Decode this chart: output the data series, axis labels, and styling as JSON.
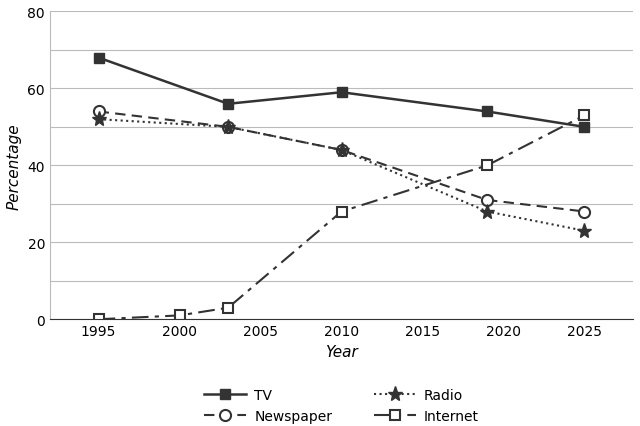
{
  "years": [
    1995,
    2000,
    2003,
    2010,
    2019,
    2025
  ],
  "TV": [
    68,
    null,
    56,
    59,
    54,
    50
  ],
  "Newspaper": [
    54,
    null,
    50,
    44,
    31,
    28
  ],
  "Radio": [
    52,
    null,
    50,
    44,
    28,
    23
  ],
  "Internet": [
    0,
    1,
    3,
    28,
    40,
    53
  ],
  "xlabel": "Year",
  "ylabel": "Percentage",
  "ylim": [
    0,
    80
  ],
  "yticks_major": [
    0,
    20,
    40,
    60,
    80
  ],
  "yticks_minor": [
    10,
    30,
    50,
    70
  ],
  "xticks": [
    1995,
    2000,
    2005,
    2010,
    2015,
    2020,
    2025
  ],
  "line_color": "#333333",
  "bg_color": "#ffffff",
  "legend_order": [
    "TV",
    "Newspaper",
    "Radio",
    "Internet"
  ]
}
